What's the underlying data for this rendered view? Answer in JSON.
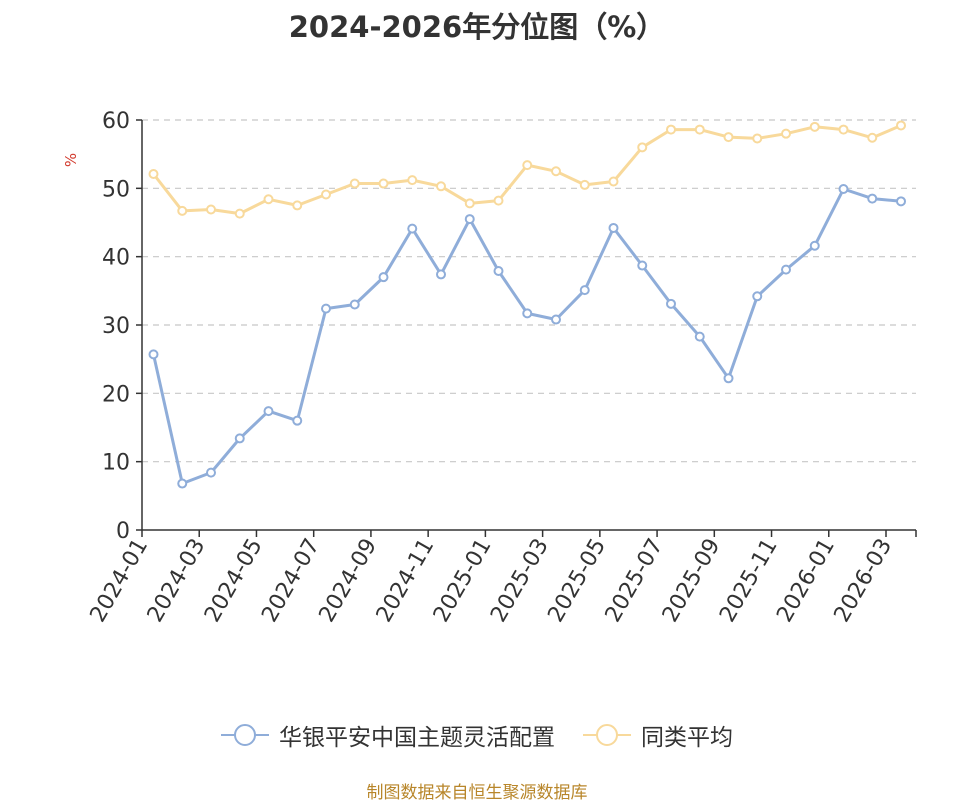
{
  "chart_data": {
    "type": "line",
    "title": "2024-2026年分位图（%）",
    "ylabel": "%",
    "xlabel": "",
    "ylim": [
      0,
      60
    ],
    "yticks": [
      0,
      10,
      20,
      30,
      40,
      50,
      60
    ],
    "grid": true,
    "legend_position": "bottom",
    "xtick_labels": [
      "2024-01",
      "2024-03",
      "2024-05",
      "2024-07",
      "2024-09",
      "2024-11",
      "2025-01",
      "2025-03",
      "2025-05",
      "2025-07",
      "2025-09",
      "2025-11",
      "2026-01",
      "2026-03"
    ],
    "series": [
      {
        "name": "华银平安中国主题灵活配置",
        "color": "#8fadd9",
        "values": [
          25.7,
          6.8,
          8.4,
          13.4,
          17.4,
          16.0,
          32.4,
          33.0,
          37.0,
          44.1,
          37.4,
          45.5,
          37.9,
          31.7,
          30.8,
          35.1,
          44.2,
          38.7,
          33.1,
          28.3,
          22.2,
          34.2,
          38.1,
          41.6,
          49.9,
          48.5,
          48.1
        ]
      },
      {
        "name": "同类平均",
        "color": "#f8d99b",
        "values": [
          52.1,
          46.7,
          46.9,
          46.3,
          48.4,
          47.5,
          49.1,
          50.7,
          50.7,
          51.2,
          50.3,
          47.8,
          48.2,
          53.4,
          52.5,
          50.5,
          51.0,
          56.0,
          58.6,
          58.6,
          57.5,
          57.3,
          58.0,
          59.0,
          58.6,
          57.4,
          59.2
        ]
      }
    ]
  },
  "source_text": "制图数据来自恒生聚源数据库"
}
